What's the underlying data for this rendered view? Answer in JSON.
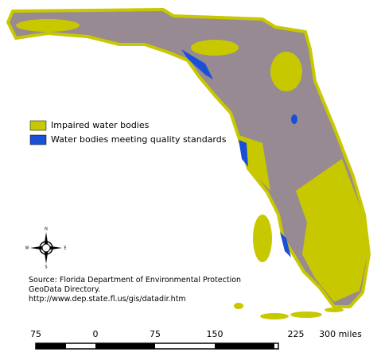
{
  "legend": {
    "items": [
      "Impaired water bodies",
      "Water bodies meeting quality standards"
    ]
  },
  "source": {
    "lines": [
      "Source: Florida Department of Environmental Protection",
      "GeoData Directory.",
      "http://www.dep.state.fl.us/gis/datadir.htm"
    ]
  },
  "compass": {
    "labels": [
      "N",
      "E",
      "S",
      "W"
    ]
  },
  "scale_bar": {
    "labels": [
      "75",
      "0",
      "75",
      "150",
      "225",
      "300 miles"
    ]
  }
}
